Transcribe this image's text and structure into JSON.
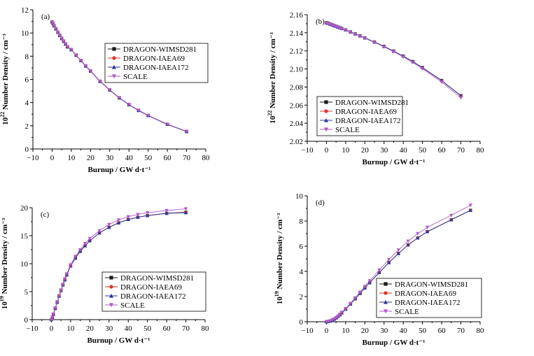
{
  "chart_data": [
    {
      "type": "line",
      "panel": "(a)",
      "xlabel": "Burnup / GW d·t⁻¹",
      "ylabel_base": "10",
      "ylabel_exp": "22",
      "ylabel_rest": " Number Density / cm⁻³",
      "xlim": [
        -10,
        80
      ],
      "ylim": [
        0,
        12
      ],
      "xticks": [
        -10,
        0,
        10,
        20,
        30,
        40,
        50,
        60,
        70,
        80
      ],
      "yticks": [
        0,
        2,
        4,
        6,
        8,
        10,
        12
      ],
      "ytick_labels": [
        "0",
        "2",
        "4",
        "6",
        "8",
        "10",
        "12"
      ],
      "legend_position": "middle-right",
      "x": [
        0,
        0.5,
        1,
        2,
        3,
        4,
        5,
        6,
        7,
        8,
        10,
        12.5,
        15,
        17.5,
        20,
        25,
        30,
        35,
        40,
        45,
        50,
        60,
        70
      ],
      "series": [
        {
          "name": "DRAGON-WIMSD281",
          "marker": "square",
          "color": "#1a1a1a",
          "values": [
            10.95,
            10.8,
            10.62,
            10.35,
            10.05,
            9.78,
            9.52,
            9.28,
            9.04,
            8.8,
            8.55,
            8.08,
            7.62,
            7.15,
            6.72,
            5.82,
            5.08,
            4.4,
            3.82,
            3.32,
            2.88,
            2.12,
            1.5
          ]
        },
        {
          "name": "DRAGON-IAEA69",
          "marker": "circle",
          "color": "#e0302a",
          "values": [
            10.95,
            10.8,
            10.62,
            10.35,
            10.05,
            9.78,
            9.52,
            9.28,
            9.04,
            8.8,
            8.55,
            8.08,
            7.62,
            7.15,
            6.72,
            5.82,
            5.08,
            4.4,
            3.82,
            3.32,
            2.88,
            2.12,
            1.5
          ]
        },
        {
          "name": "DRAGON-IAEA172",
          "marker": "triangle-up",
          "color": "#2e3a9e",
          "values": [
            10.95,
            10.8,
            10.62,
            10.35,
            10.05,
            9.78,
            9.52,
            9.28,
            9.04,
            8.8,
            8.55,
            8.08,
            7.62,
            7.15,
            6.72,
            5.82,
            5.08,
            4.4,
            3.82,
            3.32,
            2.88,
            2.12,
            1.5
          ]
        },
        {
          "name": "SCALE",
          "marker": "triangle-down",
          "color": "#b05ac8",
          "values": [
            10.98,
            10.83,
            10.65,
            10.38,
            10.08,
            9.81,
            9.55,
            9.31,
            9.07,
            8.83,
            8.58,
            8.11,
            7.65,
            7.18,
            6.75,
            5.85,
            5.11,
            4.43,
            3.85,
            3.35,
            2.91,
            2.15,
            1.53
          ]
        }
      ]
    },
    {
      "type": "line",
      "panel": "(b)",
      "xlabel": "Burnup / GW d·t⁻¹",
      "ylabel_base": "10",
      "ylabel_exp": "22",
      "ylabel_rest": " Number Density / cm⁻³",
      "xlim": [
        -10,
        80
      ],
      "ylim": [
        2.02,
        2.16
      ],
      "xticks": [
        -10,
        0,
        10,
        20,
        30,
        40,
        50,
        60,
        70,
        80
      ],
      "yticks": [
        2.02,
        2.04,
        2.06,
        2.08,
        2.1,
        2.12,
        2.14,
        2.16
      ],
      "ytick_labels": [
        "2.02",
        "2.04",
        "2.06",
        "2.08",
        "2.10",
        "2.12",
        "2.14",
        "2.16"
      ],
      "legend_position": "bottom-left",
      "x": [
        0,
        0.5,
        1,
        2,
        3,
        4,
        5,
        6,
        7,
        8,
        10,
        12.5,
        15,
        17.5,
        20,
        25,
        30,
        35,
        40,
        45,
        50,
        60,
        70
      ],
      "series": [
        {
          "name": "DRAGON-WIMSD281",
          "marker": "square",
          "color": "#1a1a1a",
          "values": [
            2.1512,
            2.1508,
            2.1504,
            2.1496,
            2.1488,
            2.148,
            2.1472,
            2.1464,
            2.1456,
            2.1448,
            2.1432,
            2.141,
            2.1388,
            2.1366,
            2.1344,
            2.1298,
            2.125,
            2.1198,
            2.1142,
            2.1082,
            2.1015,
            2.0872,
            2.0705
          ]
        },
        {
          "name": "DRAGON-IAEA69",
          "marker": "circle",
          "color": "#e0302a",
          "values": [
            2.151,
            2.1506,
            2.1502,
            2.1494,
            2.1486,
            2.1478,
            2.147,
            2.1462,
            2.1454,
            2.1446,
            2.143,
            2.1408,
            2.1386,
            2.1364,
            2.1342,
            2.1296,
            2.1248,
            2.1196,
            2.114,
            2.108,
            2.1013,
            2.087,
            2.0703
          ]
        },
        {
          "name": "DRAGON-IAEA172",
          "marker": "triangle-up",
          "color": "#2e3a9e",
          "values": [
            2.1511,
            2.1507,
            2.1503,
            2.1495,
            2.1487,
            2.1479,
            2.1471,
            2.1463,
            2.1455,
            2.1447,
            2.1431,
            2.1409,
            2.1387,
            2.1365,
            2.1343,
            2.1297,
            2.1249,
            2.1197,
            2.1141,
            2.1081,
            2.1014,
            2.0871,
            2.0704
          ]
        },
        {
          "name": "SCALE",
          "marker": "triangle-down",
          "color": "#b05ac8",
          "values": [
            2.1508,
            2.1504,
            2.15,
            2.1492,
            2.1484,
            2.1476,
            2.1468,
            2.146,
            2.1452,
            2.1444,
            2.1428,
            2.1406,
            2.1384,
            2.1362,
            2.134,
            2.1293,
            2.1244,
            2.119,
            2.1133,
            2.1071,
            2.1002,
            2.0855,
            2.0682
          ]
        }
      ]
    },
    {
      "type": "line",
      "panel": "(c)",
      "xlabel": "Burnup / GW d·t⁻¹",
      "ylabel_base": "10",
      "ylabel_exp": "19",
      "ylabel_rest": " Number Density / cm⁻³",
      "xlim": [
        -10,
        80
      ],
      "ylim": [
        0,
        20
      ],
      "xticks": [
        -10,
        0,
        10,
        20,
        30,
        40,
        50,
        60,
        70,
        80
      ],
      "yticks": [
        0,
        5,
        10,
        15,
        20
      ],
      "ytick_labels": [
        "0",
        "5",
        "10",
        "15",
        "20"
      ],
      "legend_position": "bottom-right",
      "x": [
        0,
        0.5,
        1,
        2,
        3,
        4,
        5,
        6,
        7,
        8,
        10,
        12.5,
        15,
        17.5,
        20,
        25,
        30,
        35,
        40,
        45,
        50,
        60,
        70
      ],
      "series": [
        {
          "name": "DRAGON-WIMSD281",
          "marker": "square",
          "color": "#1a1a1a",
          "values": [
            0,
            0.4,
            0.9,
            2.0,
            3.1,
            4.2,
            5.2,
            6.2,
            7.1,
            8.0,
            9.6,
            11.0,
            12.2,
            13.2,
            14.1,
            15.5,
            16.5,
            17.3,
            17.9,
            18.3,
            18.6,
            19.0,
            19.2
          ]
        },
        {
          "name": "DRAGON-IAEA69",
          "marker": "circle",
          "color": "#e0302a",
          "values": [
            0,
            0.4,
            0.9,
            2.0,
            3.1,
            4.2,
            5.2,
            6.2,
            7.1,
            8.0,
            9.6,
            11.0,
            12.2,
            13.2,
            14.1,
            15.5,
            16.5,
            17.3,
            17.9,
            18.3,
            18.6,
            19.0,
            19.2
          ]
        },
        {
          "name": "DRAGON-IAEA172",
          "marker": "triangle-up",
          "color": "#2e3a9e",
          "values": [
            0,
            0.4,
            0.9,
            2.0,
            3.1,
            4.2,
            5.2,
            6.2,
            7.1,
            8.0,
            9.6,
            11.0,
            12.2,
            13.2,
            14.1,
            15.5,
            16.5,
            17.3,
            17.9,
            18.3,
            18.6,
            19.0,
            19.1
          ]
        },
        {
          "name": "SCALE",
          "marker": "triangle-down",
          "color": "#b05ac8",
          "values": [
            0,
            0.45,
            1.0,
            2.1,
            3.2,
            4.3,
            5.3,
            6.3,
            7.3,
            8.2,
            9.8,
            11.3,
            12.5,
            13.6,
            14.5,
            15.9,
            17.0,
            17.8,
            18.4,
            18.8,
            19.1,
            19.5,
            19.8
          ]
        }
      ]
    },
    {
      "type": "line",
      "panel": "(d)",
      "xlabel": "Burnup / GW d·t⁻¹",
      "ylabel_base": "10",
      "ylabel_exp": "19",
      "ylabel_rest": " Number Density / cm⁻³",
      "xlim": [
        -10,
        80
      ],
      "ylim": [
        0,
        10
      ],
      "xticks": [
        -10,
        0,
        10,
        20,
        30,
        40,
        50,
        60,
        70,
        80
      ],
      "yticks": [
        0,
        2,
        4,
        6,
        8,
        10
      ],
      "ytick_labels": [
        "0",
        "2",
        "4",
        "6",
        "8",
        "10"
      ],
      "legend_position": "bottom-right",
      "x": [
        0,
        1,
        2,
        3,
        4,
        5,
        6,
        7,
        8,
        10,
        12.5,
        15,
        17.5,
        20,
        22.5,
        27.5,
        32.5,
        37.5,
        42.5,
        47.5,
        52.5,
        65,
        75
      ],
      "series": [
        {
          "name": "DRAGON-WIMSD281",
          "marker": "square",
          "color": "#1a1a1a",
          "values": [
            0,
            0.02,
            0.06,
            0.12,
            0.2,
            0.3,
            0.42,
            0.55,
            0.7,
            1.0,
            1.4,
            1.82,
            2.25,
            2.68,
            3.1,
            3.9,
            4.7,
            5.42,
            6.1,
            6.65,
            7.15,
            8.1,
            8.85
          ]
        },
        {
          "name": "DRAGON-IAEA69",
          "marker": "circle",
          "color": "#e0302a",
          "values": [
            0,
            0.02,
            0.06,
            0.12,
            0.2,
            0.3,
            0.42,
            0.55,
            0.7,
            1.0,
            1.4,
            1.82,
            2.25,
            2.68,
            3.1,
            3.9,
            4.7,
            5.42,
            6.1,
            6.65,
            7.15,
            8.1,
            8.85
          ]
        },
        {
          "name": "DRAGON-IAEA172",
          "marker": "triangle-up",
          "color": "#2e3a9e",
          "values": [
            0,
            0.02,
            0.06,
            0.12,
            0.2,
            0.3,
            0.42,
            0.55,
            0.7,
            1.0,
            1.4,
            1.82,
            2.25,
            2.68,
            3.1,
            3.9,
            4.7,
            5.42,
            6.1,
            6.65,
            7.15,
            8.1,
            8.85
          ]
        },
        {
          "name": "SCALE",
          "marker": "triangle-down",
          "color": "#b05ac8",
          "values": [
            0,
            0.03,
            0.07,
            0.14,
            0.22,
            0.32,
            0.45,
            0.6,
            0.75,
            1.05,
            1.46,
            1.9,
            2.35,
            2.8,
            3.25,
            4.1,
            4.95,
            5.7,
            6.4,
            7.0,
            7.5,
            8.45,
            9.25
          ]
        }
      ]
    }
  ]
}
